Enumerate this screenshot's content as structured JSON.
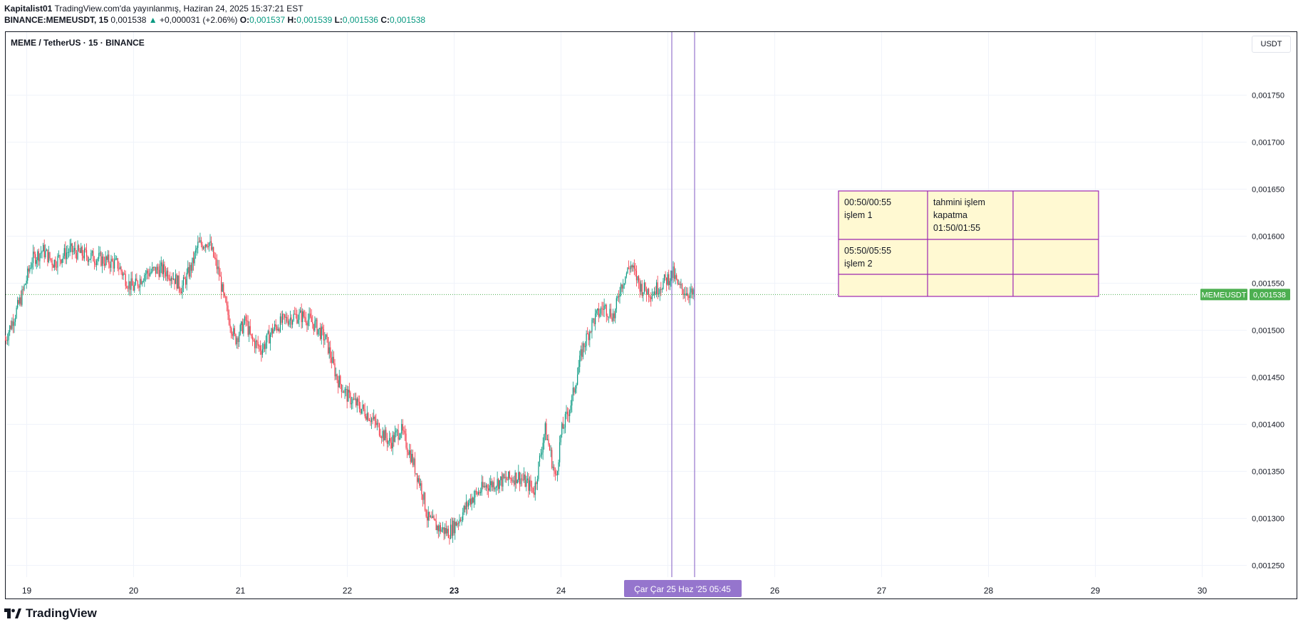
{
  "header": {
    "author": "Kapitalist01",
    "published": "TradingView.com'da yayınlanmış, Haziran 24, 2025 15:37:21 EST",
    "symbol_line": "BINANCE:MEMEUSDT, 15",
    "last": "0,001538",
    "change": "+0,000031 (+2.06%)",
    "o_label": "O:",
    "o": "0,001537",
    "h_label": "H:",
    "h": "0,001539",
    "l_label": "L:",
    "l": "0,001536",
    "c_label": "C:",
    "c": "0,001538"
  },
  "pane": {
    "title": "MEME / TetherUS · 15 · BINANCE",
    "currency_button": "USDT",
    "price_tag_symbol": "MEMEUSDT",
    "price_tag_value": "0,001538",
    "crosshair_label": "Çar   Çar 25 Haz '25   05:45"
  },
  "note_table": {
    "rows": [
      [
        "00:50/00:55\nişlem 1",
        "tahmini işlem\nkapatma\n01:50/01:55",
        ""
      ],
      [
        "05:50/05:55\nişlem 2",
        "",
        ""
      ],
      [
        "",
        "",
        ""
      ]
    ],
    "fill": "#fff9d2",
    "border": "#9c27b0"
  },
  "footer": {
    "brand": "TradingView"
  },
  "colors": {
    "up": "#089981",
    "down": "#f23645",
    "grid": "#f0f3fa",
    "price_line": "#4caf50",
    "vline": "#9575cd"
  },
  "chart_data": {
    "type": "candlestick",
    "x_ticks": [
      "19",
      "20",
      "21",
      "22",
      "23",
      "24",
      "25",
      "26",
      "27",
      "28",
      "29",
      "30"
    ],
    "y_ticks": [
      "0,001250",
      "0,001300",
      "0,001350",
      "0,001400",
      "0,001450",
      "0,001500",
      "0,001550",
      "0,001600",
      "0,001650",
      "0,001700",
      "0,001750"
    ],
    "ylim": [
      0.001225,
      0.001785
    ],
    "last_price": 0.001538,
    "price_path": [
      [
        18.8,
        0.00149
      ],
      [
        18.95,
        0.001535
      ],
      [
        19.05,
        0.001575
      ],
      [
        19.15,
        0.001585
      ],
      [
        19.25,
        0.001572
      ],
      [
        19.4,
        0.001585
      ],
      [
        19.55,
        0.00158
      ],
      [
        19.7,
        0.001575
      ],
      [
        19.85,
        0.00157
      ],
      [
        19.95,
        0.00155
      ],
      [
        20.0,
        0.001545
      ],
      [
        20.1,
        0.00156
      ],
      [
        20.25,
        0.001565
      ],
      [
        20.35,
        0.00156
      ],
      [
        20.45,
        0.001545
      ],
      [
        20.55,
        0.00157
      ],
      [
        20.6,
        0.00159
      ],
      [
        20.7,
        0.001595
      ],
      [
        20.8,
        0.00156
      ],
      [
        20.85,
        0.00153
      ],
      [
        20.95,
        0.00149
      ],
      [
        21.05,
        0.00151
      ],
      [
        21.1,
        0.00149
      ],
      [
        21.2,
        0.00148
      ],
      [
        21.3,
        0.0015
      ],
      [
        21.4,
        0.00151
      ],
      [
        21.5,
        0.001515
      ],
      [
        21.6,
        0.001515
      ],
      [
        21.7,
        0.001505
      ],
      [
        21.8,
        0.00149
      ],
      [
        21.9,
        0.00145
      ],
      [
        22.0,
        0.00143
      ],
      [
        22.1,
        0.00142
      ],
      [
        22.2,
        0.00141
      ],
      [
        22.3,
        0.001395
      ],
      [
        22.4,
        0.00138
      ],
      [
        22.5,
        0.001395
      ],
      [
        22.6,
        0.001365
      ],
      [
        22.7,
        0.00133
      ],
      [
        22.75,
        0.0013
      ],
      [
        22.85,
        0.00129
      ],
      [
        22.95,
        0.001285
      ],
      [
        23.05,
        0.0013
      ],
      [
        23.15,
        0.00132
      ],
      [
        23.3,
        0.001335
      ],
      [
        23.45,
        0.00134
      ],
      [
        23.6,
        0.001345
      ],
      [
        23.7,
        0.001335
      ],
      [
        23.75,
        0.00133
      ],
      [
        23.85,
        0.001395
      ],
      [
        23.9,
        0.00137
      ],
      [
        23.95,
        0.00134
      ],
      [
        24.0,
        0.00139
      ],
      [
        24.1,
        0.001425
      ],
      [
        24.2,
        0.00148
      ],
      [
        24.3,
        0.00151
      ],
      [
        24.4,
        0.001525
      ],
      [
        24.5,
        0.001515
      ],
      [
        24.55,
        0.001545
      ],
      [
        24.65,
        0.00157
      ],
      [
        24.75,
        0.001545
      ],
      [
        24.85,
        0.00154
      ],
      [
        24.95,
        0.00155
      ],
      [
        25.05,
        0.00156
      ],
      [
        25.1,
        0.001545
      ],
      [
        25.2,
        0.00154
      ],
      [
        25.25,
        0.001535
      ]
    ]
  }
}
